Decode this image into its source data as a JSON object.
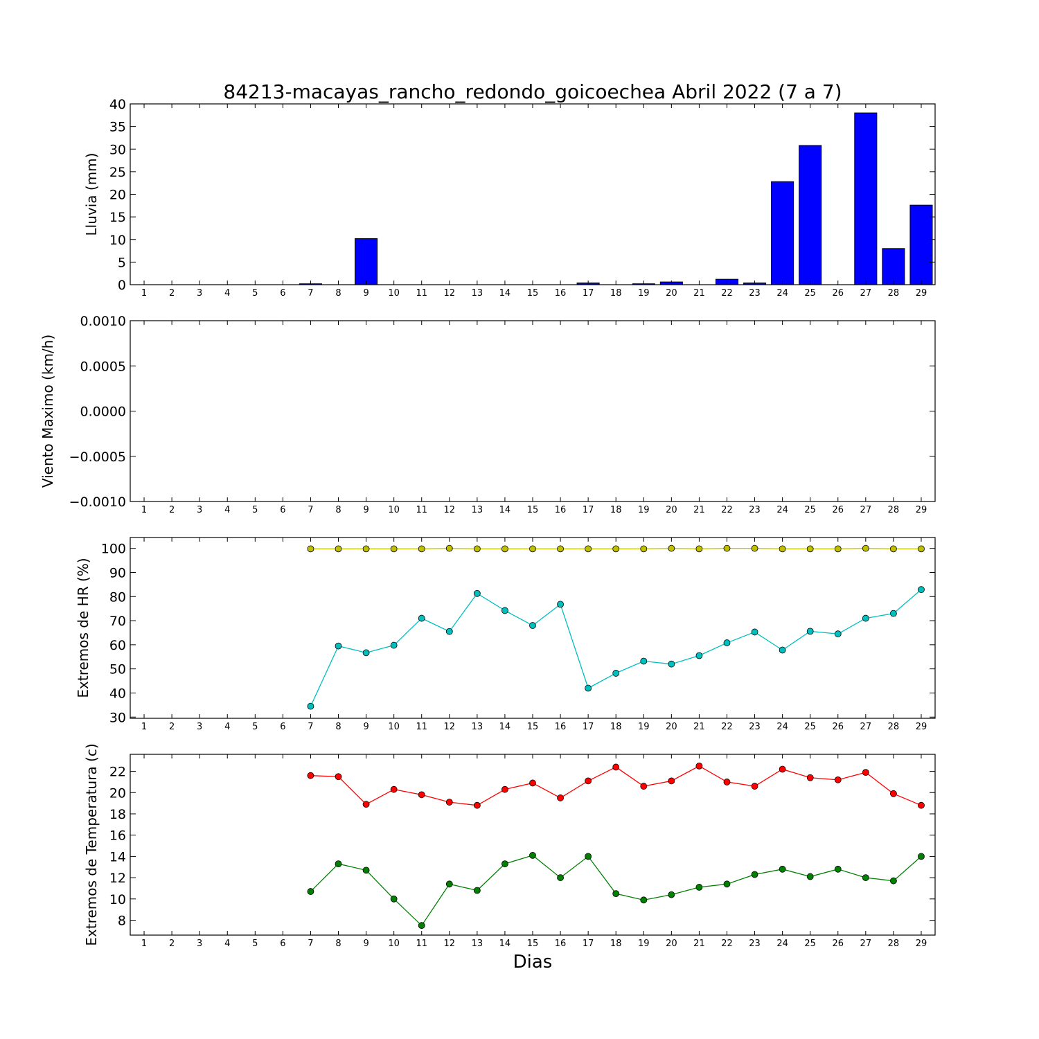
{
  "figure": {
    "title": "84213-macayas_rancho_redondo_goicoechea Abril 2022  (7 a 7)",
    "xlabel": "Dias"
  },
  "chart_data": [
    {
      "type": "bar",
      "ylabel": "Lluvia (mm)",
      "categories": [
        1,
        2,
        3,
        4,
        5,
        6,
        7,
        8,
        9,
        10,
        11,
        12,
        13,
        14,
        15,
        16,
        17,
        18,
        19,
        20,
        21,
        22,
        23,
        24,
        25,
        26,
        27,
        28,
        29
      ],
      "ylim": [
        0,
        40
      ],
      "yticks": [
        0,
        5,
        10,
        15,
        20,
        25,
        30,
        35,
        40
      ],
      "ytick_labels": [
        "0",
        "5",
        "10",
        "15",
        "20",
        "25",
        "30",
        "35",
        "40"
      ],
      "series": [
        {
          "color": "#0000ff",
          "values": [
            0,
            0,
            0,
            0,
            0,
            0,
            0.2,
            0,
            10.2,
            0,
            0,
            0,
            0,
            0,
            0,
            0,
            0.4,
            0,
            0.2,
            0.6,
            0,
            1.2,
            0.4,
            22.8,
            30.8,
            0,
            38,
            8,
            17.6
          ]
        }
      ]
    },
    {
      "type": "line",
      "ylabel": "Viento Maximo (km/h)",
      "categories": [
        1,
        2,
        3,
        4,
        5,
        6,
        7,
        8,
        9,
        10,
        11,
        12,
        13,
        14,
        15,
        16,
        17,
        18,
        19,
        20,
        21,
        22,
        23,
        24,
        25,
        26,
        27,
        28,
        29
      ],
      "ylim": [
        -0.001,
        0.001
      ],
      "yticks": [
        -0.001,
        -0.0005,
        0,
        0.0005,
        0.001
      ],
      "ytick_labels": [
        "−0.0010",
        "−0.0005",
        "0.0000",
        "0.0005",
        "0.0010"
      ],
      "series": []
    },
    {
      "type": "line",
      "ylabel": "Extremos de HR (%)",
      "categories": [
        1,
        2,
        3,
        4,
        5,
        6,
        7,
        8,
        9,
        10,
        11,
        12,
        13,
        14,
        15,
        16,
        17,
        18,
        19,
        20,
        21,
        22,
        23,
        24,
        25,
        26,
        27,
        28,
        29
      ],
      "ylim": [
        29.5,
        104.5
      ],
      "yticks": [
        30,
        40,
        50,
        60,
        70,
        80,
        90,
        100
      ],
      "ytick_labels": [
        "30",
        "40",
        "50",
        "60",
        "70",
        "80",
        "90",
        "100"
      ],
      "series": [
        {
          "color": "#bfbf00",
          "x": [
            7,
            8,
            9,
            10,
            11,
            12,
            13,
            14,
            15,
            16,
            17,
            18,
            19,
            20,
            21,
            22,
            23,
            24,
            25,
            26,
            27,
            28,
            29
          ],
          "values": [
            99.8,
            99.8,
            99.8,
            99.8,
            99.8,
            100,
            99.8,
            99.8,
            99.8,
            99.8,
            99.8,
            99.8,
            99.8,
            100,
            99.8,
            100,
            100,
            99.8,
            99.8,
            99.8,
            100,
            99.8,
            99.8
          ]
        },
        {
          "color": "#00bfbf",
          "x": [
            7,
            8,
            9,
            10,
            11,
            12,
            13,
            14,
            15,
            16,
            17,
            18,
            19,
            20,
            21,
            22,
            23,
            24,
            25,
            26,
            27,
            28,
            29
          ],
          "values": [
            34.5,
            59.5,
            56.7,
            59.8,
            71,
            65.5,
            81.3,
            74.2,
            68,
            76.8,
            42,
            48.2,
            53.2,
            52,
            55.5,
            60.8,
            65.3,
            57.8,
            65.6,
            64.5,
            71,
            73,
            82.9
          ]
        }
      ]
    },
    {
      "type": "line",
      "ylabel": "Extremos de Temperatura (c)",
      "categories": [
        1,
        2,
        3,
        4,
        5,
        6,
        7,
        8,
        9,
        10,
        11,
        12,
        13,
        14,
        15,
        16,
        17,
        18,
        19,
        20,
        21,
        22,
        23,
        24,
        25,
        26,
        27,
        28,
        29
      ],
      "ylim": [
        6.6,
        23.6
      ],
      "yticks": [
        8,
        10,
        12,
        14,
        16,
        18,
        20,
        22
      ],
      "ytick_labels": [
        "8",
        "10",
        "12",
        "14",
        "16",
        "18",
        "20",
        "22"
      ],
      "series": [
        {
          "color": "#ff0000",
          "x": [
            7,
            8,
            9,
            10,
            11,
            12,
            13,
            14,
            15,
            16,
            17,
            18,
            19,
            20,
            21,
            22,
            23,
            24,
            25,
            26,
            27,
            28,
            29
          ],
          "values": [
            21.6,
            21.5,
            18.9,
            20.3,
            19.8,
            19.1,
            18.8,
            20.3,
            20.9,
            19.5,
            21.1,
            22.4,
            20.6,
            21.1,
            22.5,
            21,
            20.6,
            22.2,
            21.4,
            21.2,
            21.9,
            19.9,
            18.8
          ]
        },
        {
          "color": "#008000",
          "x": [
            7,
            8,
            9,
            10,
            11,
            12,
            13,
            14,
            15,
            16,
            17,
            18,
            19,
            20,
            21,
            22,
            23,
            24,
            25,
            26,
            27,
            28,
            29
          ],
          "values": [
            10.7,
            13.3,
            12.7,
            10,
            7.5,
            11.4,
            10.8,
            13.3,
            14.1,
            12,
            14,
            10.5,
            9.9,
            10.4,
            11.1,
            11.4,
            12.3,
            12.8,
            12.1,
            12.8,
            12,
            11.7,
            14
          ]
        }
      ]
    }
  ]
}
